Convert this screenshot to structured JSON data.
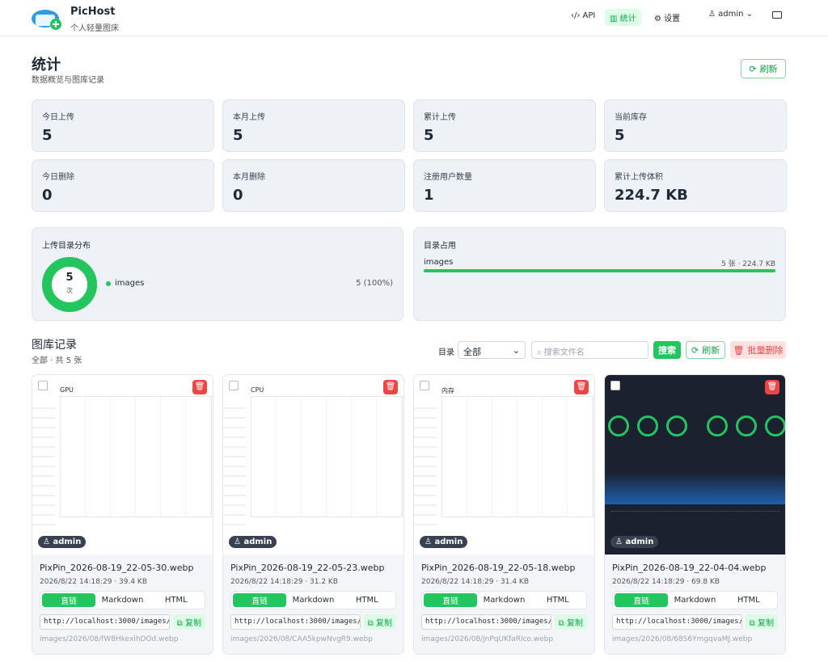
{
  "header": {
    "brand": "PicHost",
    "tagline": "个人轻量图床",
    "nav": [
      "API",
      "统计",
      "设置"
    ],
    "user": "admin"
  },
  "page": {
    "title": "统计",
    "subtitle": "数据概览与图库记录",
    "refresh": "刷新"
  },
  "stats": [
    {
      "label": "今日上传",
      "value": 5
    },
    {
      "label": "本月上传",
      "value": 5
    },
    {
      "label": "累计上传",
      "value": 5
    },
    {
      "label": "当前库存",
      "value": 5
    },
    {
      "label": "今日删除",
      "value": 0
    },
    {
      "label": "本月删除",
      "value": 0
    },
    {
      "label": "注册用户数量",
      "value": 1
    },
    {
      "label": "累计上传体积",
      "value": "224.7 KB"
    }
  ],
  "distribution": {
    "title": "上传目录分布",
    "total": 5,
    "unit": "次",
    "items": [
      {
        "name": "images",
        "value": "5 (100%)"
      }
    ]
  },
  "usage": {
    "title": "目录占用",
    "items": [
      {
        "name": "images",
        "value": "5 张 · 224.7 KB"
      }
    ]
  },
  "gallery": {
    "title": "图库记录",
    "subtitle": "全部 · 共 5 张",
    "filter_label": "目录",
    "filter_value": "全部",
    "search_placeholder": "搜索文件名",
    "search": "搜索",
    "refresh": "刷新",
    "batch_delete": "批量删除",
    "card_labels": {
      "owner": "admin",
      "tabs": [
        "直链",
        "Markdown",
        "HTML"
      ],
      "url": "http://localhost:3000/images/",
      "copy": "复制"
    },
    "cards": [
      {
        "thumb": "GPU",
        "name": "PixPin_2026-08-19_22-05-30.webp",
        "meta": "2026/8/22 14:18:29 · 39.4 KB",
        "path": "images/2026/08/fW8HkexihDOd.webp"
      },
      {
        "thumb": "CPU",
        "name": "PixPin_2026-08-19_22-05-23.webp",
        "meta": "2026/8/22 14:18:29 · 31.2 KB",
        "path": "images/2026/08/CAA5kpwNvgR9.webp"
      },
      {
        "thumb": "内存",
        "name": "PixPin_2026-08-19_22-05-18.webp",
        "meta": "2026/8/22 14:18:29 · 31.4 KB",
        "path": "images/2026/08/jnPqUKfaRIco.webp"
      },
      {
        "name": "PixPin_2026-08-19_22-04-04.webp",
        "meta": "2026/8/22 14:18:29 · 69.8 KB",
        "path": "images/2026/08/68S6YmgqvaMJ.webp"
      }
    ]
  }
}
